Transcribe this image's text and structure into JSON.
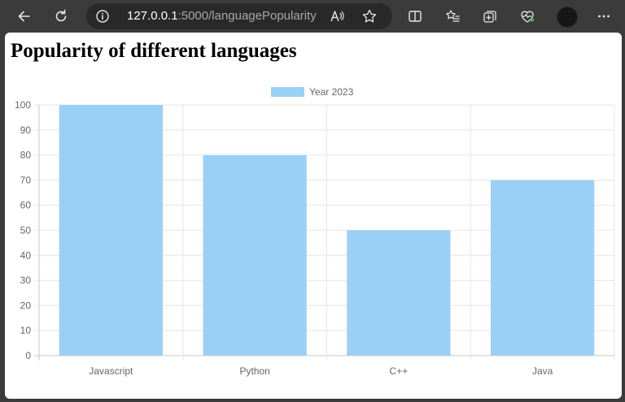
{
  "browser": {
    "url_host": "127.0.0.1",
    "url_path": ":5000/languagePopularity",
    "icons": [
      "back-icon",
      "refresh-icon",
      "info-icon",
      "read-aloud-icon",
      "favorite-star-icon",
      "split-screen-icon",
      "favorites-list-icon",
      "collections-icon",
      "browser-essentials-icon",
      "profile-avatar",
      "more-menu-icon"
    ]
  },
  "page": {
    "title": "Popularity of different languages"
  },
  "chart_data": {
    "type": "bar",
    "title": "",
    "xlabel": "",
    "ylabel": "",
    "categories": [
      "Javascript",
      "Python",
      "C++",
      "Java"
    ],
    "series": [
      {
        "name": "Year 2023",
        "values": [
          100,
          80,
          50,
          70
        ],
        "color": "#9ad0f5"
      }
    ],
    "ylim": [
      0,
      100
    ],
    "yticks": [
      "0",
      "10",
      "20",
      "30",
      "40",
      "50",
      "60",
      "70",
      "80",
      "90",
      "100"
    ],
    "grid": true,
    "legend_position": "top"
  }
}
